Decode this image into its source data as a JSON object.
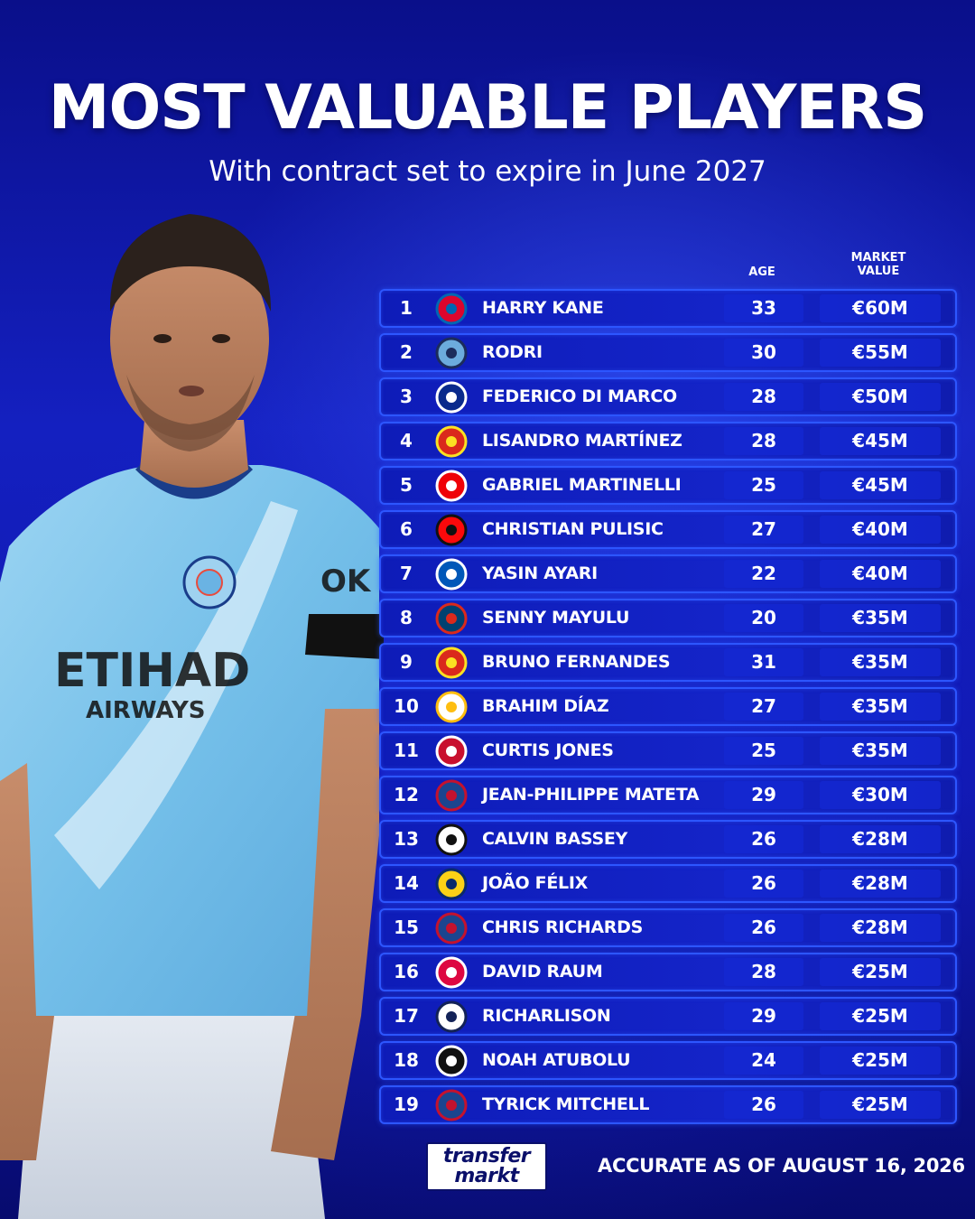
{
  "header": {
    "title": "MOST VALUABLE PLAYERS",
    "subtitle": "With contract set to expire in June 2027"
  },
  "columns": {
    "age": "AGE",
    "market_value_line1": "MARKET",
    "market_value_line2": "VALUE"
  },
  "players": [
    {
      "rank": "1",
      "name": "HARRY KANE",
      "age": "33",
      "value": "€60M",
      "club_icon": "bayern-munich-crest"
    },
    {
      "rank": "2",
      "name": "RODRI",
      "age": "30",
      "value": "€55M",
      "club_icon": "manchester-city-crest"
    },
    {
      "rank": "3",
      "name": "FEDERICO DI MARCO",
      "age": "28",
      "value": "€50M",
      "club_icon": "inter-milan-crest"
    },
    {
      "rank": "4",
      "name": "LISANDRO MARTÍNEZ",
      "age": "28",
      "value": "€45M",
      "club_icon": "manchester-united-crest"
    },
    {
      "rank": "5",
      "name": "GABRIEL MARTINELLI",
      "age": "25",
      "value": "€45M",
      "club_icon": "arsenal-crest"
    },
    {
      "rank": "6",
      "name": "CHRISTIAN PULISIC",
      "age": "27",
      "value": "€40M",
      "club_icon": "ac-milan-crest"
    },
    {
      "rank": "7",
      "name": "YASIN AYARI",
      "age": "22",
      "value": "€40M",
      "club_icon": "brighton-crest"
    },
    {
      "rank": "8",
      "name": "SENNY MAYULU",
      "age": "20",
      "value": "€35M",
      "club_icon": "psg-crest"
    },
    {
      "rank": "9",
      "name": "BRUNO FERNANDES",
      "age": "31",
      "value": "€35M",
      "club_icon": "manchester-united-crest"
    },
    {
      "rank": "10",
      "name": "BRAHIM DÍAZ",
      "age": "27",
      "value": "€35M",
      "club_icon": "real-madrid-crest"
    },
    {
      "rank": "11",
      "name": "CURTIS JONES",
      "age": "25",
      "value": "€35M",
      "club_icon": "liverpool-crest"
    },
    {
      "rank": "12",
      "name": "JEAN-PHILIPPE MATETA",
      "age": "29",
      "value": "€30M",
      "club_icon": "crystal-palace-crest"
    },
    {
      "rank": "13",
      "name": "CALVIN BASSEY",
      "age": "26",
      "value": "€28M",
      "club_icon": "fulham-crest"
    },
    {
      "rank": "14",
      "name": "JOÃO FÉLIX",
      "age": "26",
      "value": "€28M",
      "club_icon": "al-nassr-crest"
    },
    {
      "rank": "15",
      "name": "CHRIS RICHARDS",
      "age": "26",
      "value": "€28M",
      "club_icon": "crystal-palace-crest"
    },
    {
      "rank": "16",
      "name": "DAVID RAUM",
      "age": "28",
      "value": "€25M",
      "club_icon": "rb-leipzig-crest"
    },
    {
      "rank": "17",
      "name": "RICHARLISON",
      "age": "29",
      "value": "€25M",
      "club_icon": "tottenham-crest"
    },
    {
      "rank": "18",
      "name": "NOAH ATUBOLU",
      "age": "24",
      "value": "€25M",
      "club_icon": "sc-freiburg-crest"
    },
    {
      "rank": "19",
      "name": "TYRICK MITCHELL",
      "age": "26",
      "value": "€25M",
      "club_icon": "crystal-palace-crest"
    }
  ],
  "footer": {
    "logo_line1": "transfer",
    "logo_line2": "markt",
    "note": "ACCURATE AS OF AUGUST 16, 2026"
  },
  "colors": {
    "background": "#1420c0",
    "row_border": "#2d56ff",
    "text": "#ffffff",
    "kit_sky_blue": "#7cc4ec"
  }
}
